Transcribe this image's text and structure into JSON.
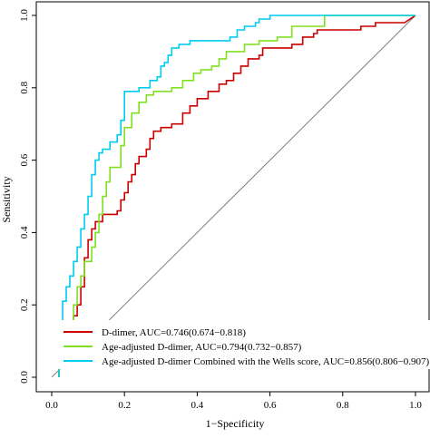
{
  "chart_data": {
    "type": "line",
    "title": "",
    "xlabel": "1−Specificity",
    "ylabel": "Sensitivity",
    "xlim": [
      0,
      1
    ],
    "ylim": [
      0,
      1
    ],
    "x_ticks": [
      "0.0",
      "0.2",
      "0.4",
      "0.6",
      "0.8",
      "1.0"
    ],
    "y_ticks": [
      "0.0",
      "0.2",
      "0.4",
      "0.6",
      "0.8",
      "1.0"
    ],
    "grid": false,
    "legend_position": "bottom-left",
    "reference_line": {
      "from": [
        0,
        0
      ],
      "to": [
        1,
        1
      ],
      "color": "#808080"
    },
    "series": [
      {
        "name": "D-dimer, AUC=0.746(0.674−0.818)",
        "color": "#cc0000",
        "points": [
          [
            0.02,
            0.0
          ],
          [
            0.02,
            0.04
          ],
          [
            0.03,
            0.04
          ],
          [
            0.03,
            0.08
          ],
          [
            0.04,
            0.08
          ],
          [
            0.04,
            0.12
          ],
          [
            0.05,
            0.12
          ],
          [
            0.05,
            0.14
          ],
          [
            0.06,
            0.14
          ],
          [
            0.06,
            0.17
          ],
          [
            0.07,
            0.17
          ],
          [
            0.07,
            0.2
          ],
          [
            0.08,
            0.2
          ],
          [
            0.08,
            0.25
          ],
          [
            0.09,
            0.25
          ],
          [
            0.09,
            0.33
          ],
          [
            0.1,
            0.33
          ],
          [
            0.1,
            0.38
          ],
          [
            0.11,
            0.38
          ],
          [
            0.11,
            0.41
          ],
          [
            0.12,
            0.41
          ],
          [
            0.12,
            0.43
          ],
          [
            0.14,
            0.43
          ],
          [
            0.14,
            0.45
          ],
          [
            0.18,
            0.45
          ],
          [
            0.18,
            0.46
          ],
          [
            0.19,
            0.46
          ],
          [
            0.19,
            0.49
          ],
          [
            0.2,
            0.49
          ],
          [
            0.2,
            0.51
          ],
          [
            0.21,
            0.51
          ],
          [
            0.21,
            0.54
          ],
          [
            0.22,
            0.54
          ],
          [
            0.22,
            0.56
          ],
          [
            0.23,
            0.56
          ],
          [
            0.23,
            0.59
          ],
          [
            0.24,
            0.59
          ],
          [
            0.24,
            0.61
          ],
          [
            0.26,
            0.61
          ],
          [
            0.26,
            0.63
          ],
          [
            0.27,
            0.63
          ],
          [
            0.27,
            0.66
          ],
          [
            0.28,
            0.66
          ],
          [
            0.28,
            0.68
          ],
          [
            0.3,
            0.68
          ],
          [
            0.3,
            0.69
          ],
          [
            0.33,
            0.69
          ],
          [
            0.33,
            0.7
          ],
          [
            0.36,
            0.7
          ],
          [
            0.36,
            0.73
          ],
          [
            0.38,
            0.73
          ],
          [
            0.38,
            0.75
          ],
          [
            0.4,
            0.75
          ],
          [
            0.4,
            0.77
          ],
          [
            0.43,
            0.77
          ],
          [
            0.43,
            0.79
          ],
          [
            0.46,
            0.79
          ],
          [
            0.46,
            0.81
          ],
          [
            0.48,
            0.81
          ],
          [
            0.48,
            0.82
          ],
          [
            0.5,
            0.82
          ],
          [
            0.5,
            0.84
          ],
          [
            0.52,
            0.84
          ],
          [
            0.52,
            0.86
          ],
          [
            0.54,
            0.86
          ],
          [
            0.54,
            0.88
          ],
          [
            0.57,
            0.88
          ],
          [
            0.57,
            0.89
          ],
          [
            0.58,
            0.89
          ],
          [
            0.58,
            0.91
          ],
          [
            0.66,
            0.91
          ],
          [
            0.66,
            0.92
          ],
          [
            0.69,
            0.92
          ],
          [
            0.69,
            0.94
          ],
          [
            0.72,
            0.94
          ],
          [
            0.72,
            0.95
          ],
          [
            0.73,
            0.95
          ],
          [
            0.73,
            0.96
          ],
          [
            0.85,
            0.96
          ],
          [
            0.85,
            0.97
          ],
          [
            0.89,
            0.97
          ],
          [
            0.89,
            0.98
          ],
          [
            0.97,
            0.98
          ],
          [
            1.0,
            1.0
          ]
        ]
      },
      {
        "name": "Age-adjusted D-dimer, AUC=0.794(0.732−0.857)",
        "color": "#80e020",
        "points": [
          [
            0.02,
            0.0
          ],
          [
            0.02,
            0.04
          ],
          [
            0.03,
            0.04
          ],
          [
            0.03,
            0.12
          ],
          [
            0.05,
            0.12
          ],
          [
            0.05,
            0.15
          ],
          [
            0.06,
            0.15
          ],
          [
            0.06,
            0.2
          ],
          [
            0.07,
            0.2
          ],
          [
            0.07,
            0.25
          ],
          [
            0.08,
            0.25
          ],
          [
            0.08,
            0.28
          ],
          [
            0.09,
            0.28
          ],
          [
            0.09,
            0.32
          ],
          [
            0.11,
            0.32
          ],
          [
            0.11,
            0.36
          ],
          [
            0.12,
            0.36
          ],
          [
            0.12,
            0.4
          ],
          [
            0.13,
            0.4
          ],
          [
            0.13,
            0.45
          ],
          [
            0.14,
            0.45
          ],
          [
            0.14,
            0.5
          ],
          [
            0.15,
            0.5
          ],
          [
            0.15,
            0.54
          ],
          [
            0.16,
            0.54
          ],
          [
            0.16,
            0.58
          ],
          [
            0.19,
            0.58
          ],
          [
            0.19,
            0.64
          ],
          [
            0.2,
            0.64
          ],
          [
            0.2,
            0.69
          ],
          [
            0.22,
            0.69
          ],
          [
            0.22,
            0.73
          ],
          [
            0.24,
            0.73
          ],
          [
            0.24,
            0.76
          ],
          [
            0.26,
            0.76
          ],
          [
            0.26,
            0.78
          ],
          [
            0.28,
            0.78
          ],
          [
            0.28,
            0.79
          ],
          [
            0.33,
            0.79
          ],
          [
            0.33,
            0.8
          ],
          [
            0.36,
            0.8
          ],
          [
            0.36,
            0.82
          ],
          [
            0.39,
            0.82
          ],
          [
            0.39,
            0.84
          ],
          [
            0.41,
            0.84
          ],
          [
            0.41,
            0.85
          ],
          [
            0.44,
            0.85
          ],
          [
            0.44,
            0.86
          ],
          [
            0.46,
            0.86
          ],
          [
            0.46,
            0.88
          ],
          [
            0.48,
            0.88
          ],
          [
            0.48,
            0.9
          ],
          [
            0.53,
            0.9
          ],
          [
            0.53,
            0.92
          ],
          [
            0.57,
            0.92
          ],
          [
            0.57,
            0.93
          ],
          [
            0.62,
            0.93
          ],
          [
            0.62,
            0.94
          ],
          [
            0.66,
            0.94
          ],
          [
            0.66,
            0.97
          ],
          [
            0.75,
            0.97
          ],
          [
            0.75,
            1.0
          ],
          [
            1.0,
            1.0
          ]
        ]
      },
      {
        "name": "Age-adjusted D-dimer Combined with the Wells score, AUC=0.856(0.806−0.907)",
        "color": "#00ccee",
        "points": [
          [
            0.02,
            0.0
          ],
          [
            0.02,
            0.07
          ],
          [
            0.03,
            0.07
          ],
          [
            0.03,
            0.21
          ],
          [
            0.04,
            0.21
          ],
          [
            0.04,
            0.25
          ],
          [
            0.05,
            0.25
          ],
          [
            0.05,
            0.28
          ],
          [
            0.06,
            0.28
          ],
          [
            0.06,
            0.32
          ],
          [
            0.07,
            0.32
          ],
          [
            0.07,
            0.36
          ],
          [
            0.08,
            0.36
          ],
          [
            0.08,
            0.41
          ],
          [
            0.09,
            0.41
          ],
          [
            0.09,
            0.45
          ],
          [
            0.1,
            0.45
          ],
          [
            0.1,
            0.5
          ],
          [
            0.11,
            0.5
          ],
          [
            0.11,
            0.56
          ],
          [
            0.12,
            0.56
          ],
          [
            0.12,
            0.6
          ],
          [
            0.13,
            0.6
          ],
          [
            0.13,
            0.62
          ],
          [
            0.14,
            0.62
          ],
          [
            0.14,
            0.63
          ],
          [
            0.16,
            0.63
          ],
          [
            0.16,
            0.65
          ],
          [
            0.18,
            0.65
          ],
          [
            0.18,
            0.67
          ],
          [
            0.19,
            0.67
          ],
          [
            0.19,
            0.71
          ],
          [
            0.2,
            0.71
          ],
          [
            0.2,
            0.79
          ],
          [
            0.24,
            0.79
          ],
          [
            0.24,
            0.8
          ],
          [
            0.27,
            0.8
          ],
          [
            0.27,
            0.82
          ],
          [
            0.29,
            0.82
          ],
          [
            0.29,
            0.83
          ],
          [
            0.3,
            0.83
          ],
          [
            0.3,
            0.86
          ],
          [
            0.31,
            0.86
          ],
          [
            0.31,
            0.87
          ],
          [
            0.32,
            0.87
          ],
          [
            0.32,
            0.89
          ],
          [
            0.33,
            0.89
          ],
          [
            0.33,
            0.91
          ],
          [
            0.35,
            0.91
          ],
          [
            0.35,
            0.92
          ],
          [
            0.38,
            0.92
          ],
          [
            0.38,
            0.93
          ],
          [
            0.49,
            0.93
          ],
          [
            0.49,
            0.94
          ],
          [
            0.51,
            0.94
          ],
          [
            0.51,
            0.96
          ],
          [
            0.53,
            0.96
          ],
          [
            0.53,
            0.97
          ],
          [
            0.56,
            0.97
          ],
          [
            0.56,
            0.98
          ],
          [
            0.57,
            0.98
          ],
          [
            0.57,
            0.99
          ],
          [
            0.6,
            0.99
          ],
          [
            0.6,
            1.0
          ],
          [
            1.0,
            1.0
          ]
        ]
      }
    ]
  }
}
